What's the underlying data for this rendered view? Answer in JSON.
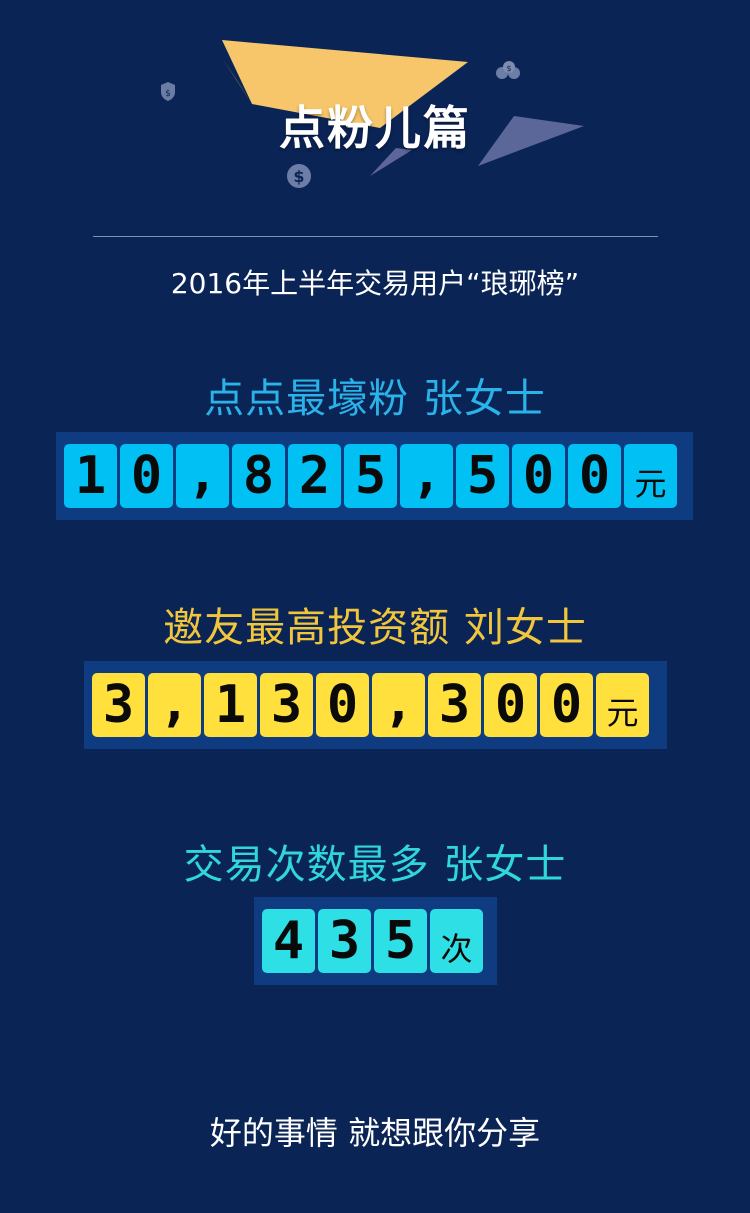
{
  "header": {
    "title": "点粉儿篇"
  },
  "subtitle": "2016年上半年交易用户“琅琊榜”",
  "sections": [
    {
      "label": "点点最壕粉  张女士",
      "label_color": "#29b3e8",
      "tile_color": "#00c0f4",
      "digits": [
        "1",
        "0",
        ",",
        "8",
        "2",
        "5",
        ",",
        "5",
        "0",
        "0"
      ],
      "unit": "元"
    },
    {
      "label": "邀友最高投资额 刘女士",
      "label_color": "#f1c53c",
      "tile_color": "#ffe03c",
      "digits": [
        "3",
        ",",
        "1",
        "3",
        "0",
        ",",
        "3",
        "0",
        "0"
      ],
      "unit": "元"
    },
    {
      "label": "交易次数最多  张女士",
      "label_color": "#2fd6dc",
      "tile_color": "#2ee0e6",
      "digits": [
        "4",
        "3",
        "5"
      ],
      "unit": "次"
    }
  ],
  "footer": "好的事情 就想跟你分享",
  "colors": {
    "background": "#0b2456",
    "board": "#0f3b80"
  },
  "icons": [
    "shield-icon",
    "dollar-coin-icon",
    "money-bags-icon"
  ]
}
